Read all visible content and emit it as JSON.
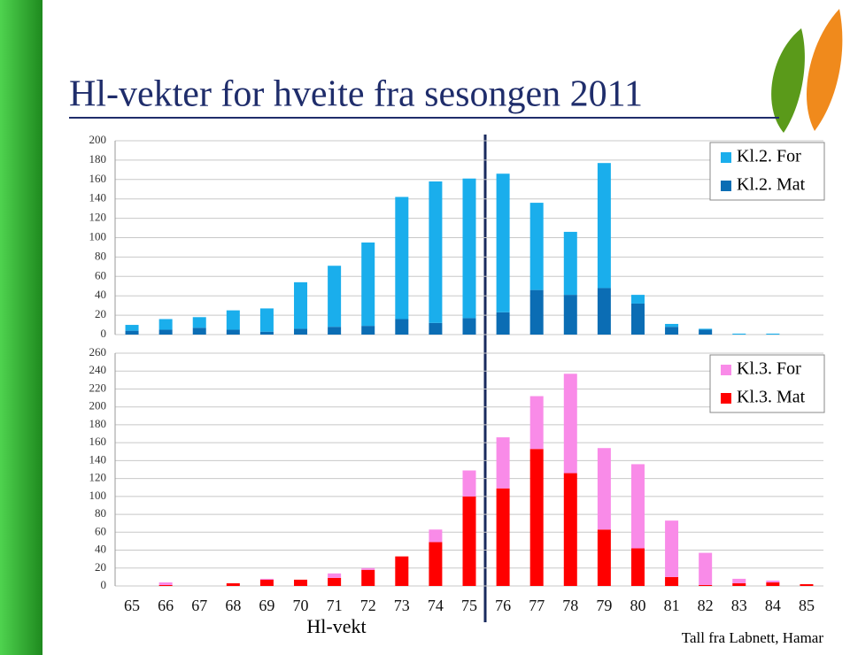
{
  "chart_data": [
    {
      "type": "bar",
      "stacked": true,
      "title": "Hl-vekter for hveite fra sesongen 2011",
      "ylim": [
        0,
        200
      ],
      "yticks": [
        0,
        20,
        40,
        60,
        80,
        100,
        120,
        140,
        160,
        180,
        200
      ],
      "grid": true,
      "legend": "top-right",
      "series": [
        {
          "name": "Kl.2. For",
          "color": "#1aaeec",
          "values": [
            6,
            11,
            11,
            20,
            24,
            48,
            63,
            86,
            126,
            146,
            144,
            143,
            90,
            65,
            129,
            9,
            3,
            1,
            1,
            1,
            0
          ]
        },
        {
          "name": "Kl.2. Mat",
          "color": "#0b6db4",
          "values": [
            4,
            5,
            7,
            5,
            3,
            6,
            8,
            9,
            16,
            12,
            17,
            23,
            46,
            41,
            48,
            32,
            8,
            5,
            0,
            0,
            0
          ]
        }
      ]
    },
    {
      "type": "bar",
      "stacked": true,
      "x_label": "Hl-vekt",
      "source": "Tall fra Labnett, Hamar",
      "categories": [
        "65",
        "66",
        "67",
        "68",
        "69",
        "70",
        "71",
        "72",
        "73",
        "74",
        "75",
        "76",
        "77",
        "78",
        "79",
        "80",
        "81",
        "82",
        "83",
        "84",
        "85"
      ],
      "ylim": [
        0,
        260
      ],
      "yticks": [
        0,
        20,
        40,
        60,
        80,
        100,
        120,
        140,
        160,
        180,
        200,
        220,
        240,
        260
      ],
      "grid": true,
      "legend": "top-right",
      "series": [
        {
          "name": "Kl.3. For",
          "color": "#f98be8",
          "values": [
            0,
            3,
            0,
            0,
            1,
            0,
            5,
            2,
            0,
            14,
            29,
            57,
            59,
            111,
            91,
            94,
            63,
            36,
            5,
            2,
            0
          ]
        },
        {
          "name": "Kl.3. Mat",
          "color": "#ff0000",
          "values": [
            0,
            1,
            0,
            3,
            7,
            7,
            9,
            18,
            33,
            49,
            100,
            109,
            153,
            126,
            63,
            42,
            10,
            1,
            3,
            4,
            2
          ]
        }
      ]
    }
  ]
}
